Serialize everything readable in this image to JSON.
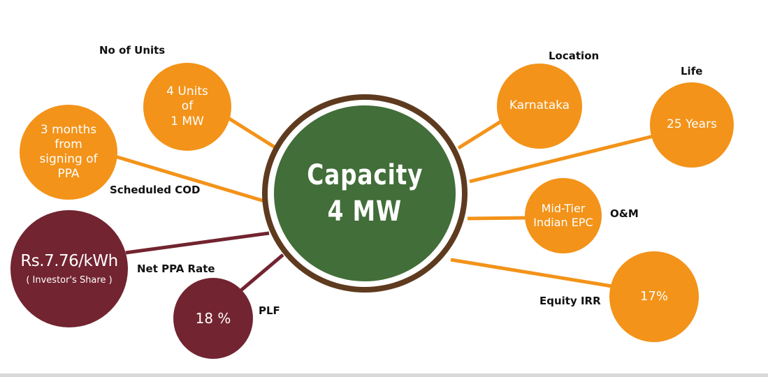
{
  "center": {
    "line1": "Capacity",
    "line2": "4 MW"
  },
  "nodes": {
    "units": {
      "label": "No of Units",
      "lines": [
        "4 Units",
        "of",
        "1 MW"
      ]
    },
    "cod": {
      "label": "Scheduled COD",
      "lines": [
        "3 months",
        "from",
        "signing of",
        "PPA"
      ]
    },
    "ppa_rate": {
      "label": "Net PPA Rate",
      "value": "Rs.7.76/kWh",
      "sub": "( Investor's Share )"
    },
    "plf": {
      "label": "PLF",
      "value": "18 %"
    },
    "location": {
      "label": "Location",
      "value": "Karnataka"
    },
    "life": {
      "label": "Life",
      "value": "25 Years"
    },
    "om": {
      "label": "O&M",
      "lines": [
        "Mid-Tier",
        "Indian EPC"
      ]
    },
    "irr": {
      "label": "Equity IRR",
      "value": "17%"
    }
  },
  "colors": {
    "orange": "#F39319",
    "maroon": "#722430",
    "green": "#426E39",
    "ring": "#5E3A1F"
  }
}
